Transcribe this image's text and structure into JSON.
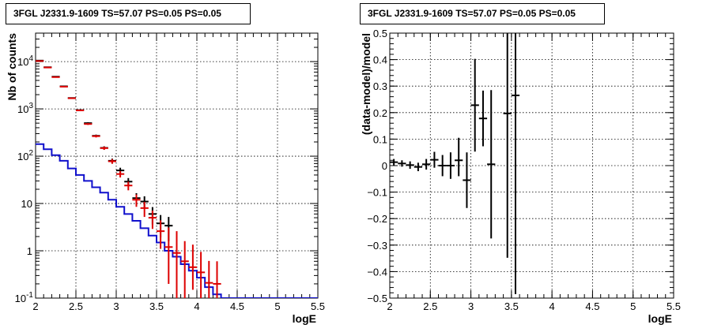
{
  "chart_data": [
    {
      "type": "line",
      "title": "3FGL J2331.9-1609 TS=57.07 PS=0.05 PS=0.05",
      "xlabel": "logE",
      "ylabel": "Nb of counts",
      "xlim": [
        2,
        5.5
      ],
      "ylim": [
        0.1,
        40000
      ],
      "yscale": "log",
      "grid": true,
      "xticks": [
        "2",
        "2.5",
        "3",
        "3.5",
        "4",
        "4.5",
        "5",
        "5.5"
      ],
      "yticks": [
        "10^-1",
        "1",
        "10",
        "10^2",
        "10^3",
        "10^4"
      ],
      "series": [
        {
          "kind": "step",
          "color": "#1010cc",
          "x_edges": [
            2.0,
            2.1,
            2.2,
            2.3,
            2.4,
            2.5,
            2.6,
            2.7,
            2.8,
            2.9,
            3.0,
            3.1,
            3.2,
            3.3,
            3.4,
            3.5,
            3.6,
            3.7,
            3.8,
            3.9,
            4.0,
            4.1,
            4.2,
            4.3,
            4.4,
            4.5,
            4.6,
            4.7,
            4.8,
            4.9,
            5.0,
            5.1,
            5.2,
            5.3,
            5.4,
            5.5
          ],
          "values": [
            180,
            140,
            105,
            80,
            55,
            40,
            30,
            22,
            17,
            12,
            8.5,
            6.0,
            4.3,
            3.0,
            2.1,
            1.5,
            1.0,
            0.75,
            0.52,
            0.38,
            0.27,
            0.17,
            0.12,
            0.1,
            0.1,
            0.1,
            0.1,
            0.1,
            0.1,
            0.1,
            0.1,
            0.1,
            0.1,
            0.1,
            0.1
          ]
        },
        {
          "kind": "errorbar",
          "color": "#000000",
          "x": [
            2.05,
            2.15,
            2.25,
            2.35,
            2.45,
            2.55,
            2.65,
            2.75,
            2.85,
            2.95,
            3.05,
            3.15,
            3.25,
            3.35,
            3.45,
            3.55,
            3.65
          ],
          "y": [
            10500,
            7600,
            4800,
            3000,
            1700,
            940,
            500,
            270,
            150,
            80,
            50,
            29,
            13,
            11,
            6,
            3.8,
            3.4
          ],
          "yerr_lo": [
            100,
            90,
            70,
            55,
            40,
            30,
            22,
            16,
            12,
            9,
            7,
            5.5,
            3.5,
            3.2,
            2.4,
            1.9,
            1.8
          ],
          "yerr_hi": [
            100,
            90,
            70,
            55,
            40,
            30,
            22,
            16,
            12,
            9,
            7,
            5.5,
            3.5,
            3.2,
            2.4,
            1.9,
            1.8
          ]
        },
        {
          "kind": "errorbar",
          "color": "#dd0000",
          "x": [
            2.05,
            2.15,
            2.25,
            2.35,
            2.45,
            2.55,
            2.65,
            2.75,
            2.85,
            2.95,
            3.05,
            3.15,
            3.25,
            3.35,
            3.45,
            3.55,
            3.65,
            3.75,
            3.85,
            3.95,
            4.05,
            4.15,
            4.25
          ],
          "y": [
            10300,
            7500,
            4700,
            2950,
            1680,
            930,
            480,
            265,
            148,
            78,
            42,
            24,
            12,
            8,
            5,
            2.6,
            1.2,
            0.9,
            0.6,
            0.45,
            0.35,
            0.21,
            0.2
          ],
          "yerr_lo": [
            100,
            90,
            70,
            55,
            40,
            30,
            22,
            16,
            12,
            9,
            6.5,
            5,
            3.5,
            2.8,
            2.1,
            1.5,
            1.0,
            0.8,
            0.5,
            0.3,
            0.25,
            0.17,
            0.12
          ],
          "yerr_hi": [
            100,
            90,
            70,
            55,
            40,
            30,
            22,
            16,
            12,
            9,
            6.5,
            5,
            3.5,
            2.8,
            2.1,
            1.8,
            1.9,
            1.7,
            1.0,
            0.9,
            0.6,
            0.4,
            0.4
          ]
        }
      ]
    },
    {
      "type": "scatter",
      "title": "3FGL J2331.9-1609 TS=57.07 PS=0.05 PS=0.05",
      "xlabel": "logE",
      "ylabel": "(data-model)/model",
      "xlim": [
        2,
        5.5
      ],
      "ylim": [
        -0.5,
        0.5
      ],
      "grid": true,
      "xticks": [
        "2",
        "2.5",
        "3",
        "3.5",
        "4",
        "4.5",
        "5",
        "5.5"
      ],
      "yticks": [
        "−0.5",
        "−0.4",
        "−0.3",
        "−0.2",
        "−0.1",
        "0",
        "0.1",
        "0.2",
        "0.3",
        "0.4",
        "0.5"
      ],
      "series": [
        {
          "kind": "errorbar",
          "color": "#000000",
          "x": [
            2.05,
            2.15,
            2.25,
            2.35,
            2.45,
            2.55,
            2.65,
            2.75,
            2.85,
            2.95,
            3.05,
            3.15,
            3.25,
            3.45,
            3.55
          ],
          "y": [
            0.013,
            0.008,
            0.002,
            -0.005,
            0.005,
            0.022,
            0.0,
            0.0,
            0.02,
            -0.055,
            0.228,
            0.178,
            0.005,
            0.197,
            0.265
          ],
          "yerr_lo": [
            0.012,
            0.012,
            0.014,
            0.016,
            0.02,
            0.03,
            0.04,
            0.05,
            0.06,
            0.105,
            0.175,
            0.105,
            0.28,
            0.545,
            0.75
          ],
          "yerr_hi": [
            0.012,
            0.012,
            0.014,
            0.016,
            0.02,
            0.03,
            0.04,
            0.05,
            0.085,
            0.105,
            0.175,
            0.105,
            0.28,
            0.55,
            0.75
          ]
        }
      ]
    }
  ]
}
